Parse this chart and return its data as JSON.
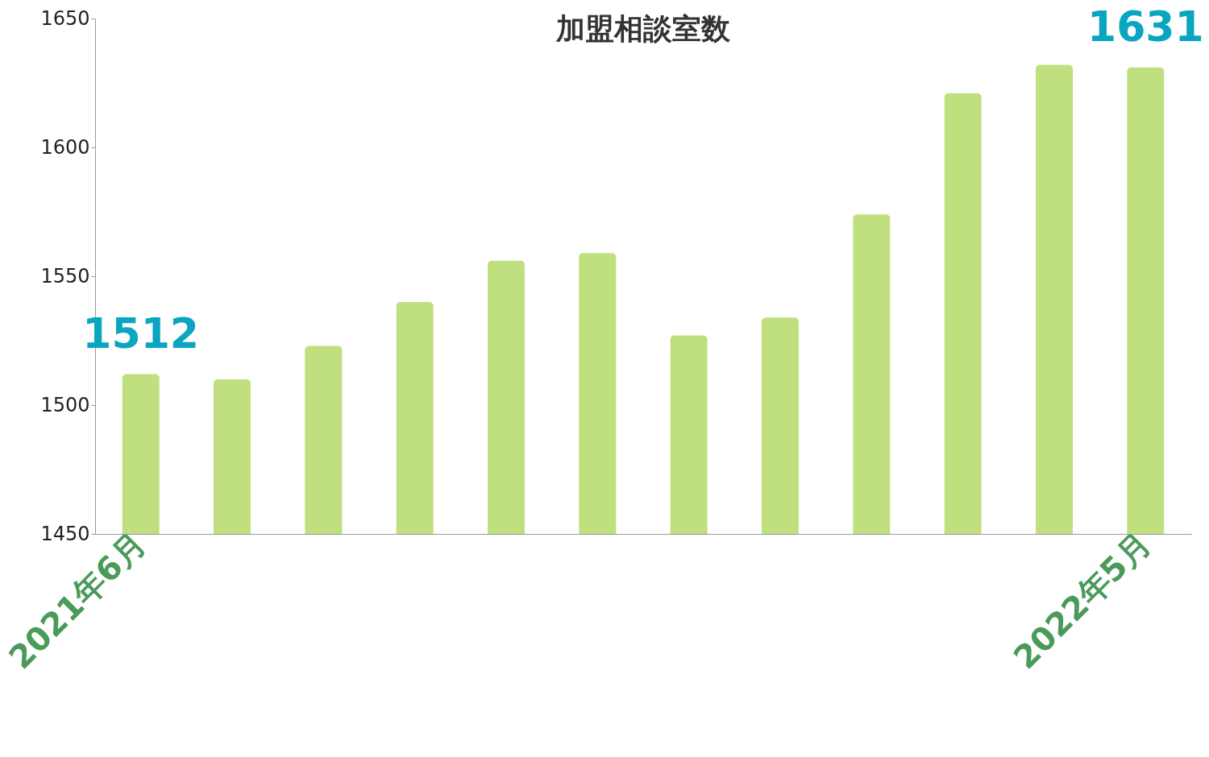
{
  "chart_data": {
    "type": "bar",
    "title": "加盟相談室数",
    "categories": [
      "2021年6月",
      null,
      null,
      null,
      null,
      null,
      null,
      null,
      null,
      null,
      null,
      "2022年5月"
    ],
    "values": [
      1512,
      1510,
      1523,
      1540,
      1556,
      1559,
      1527,
      1534,
      1574,
      1621,
      1632,
      1631
    ],
    "value_labels": [
      "1512",
      null,
      null,
      null,
      null,
      null,
      null,
      null,
      null,
      null,
      null,
      "1631"
    ],
    "color": "#c0e080",
    "ylim": [
      1450,
      1650
    ],
    "yticks": [
      1450,
      1500,
      1550,
      1600,
      1650
    ],
    "grid": false
  }
}
